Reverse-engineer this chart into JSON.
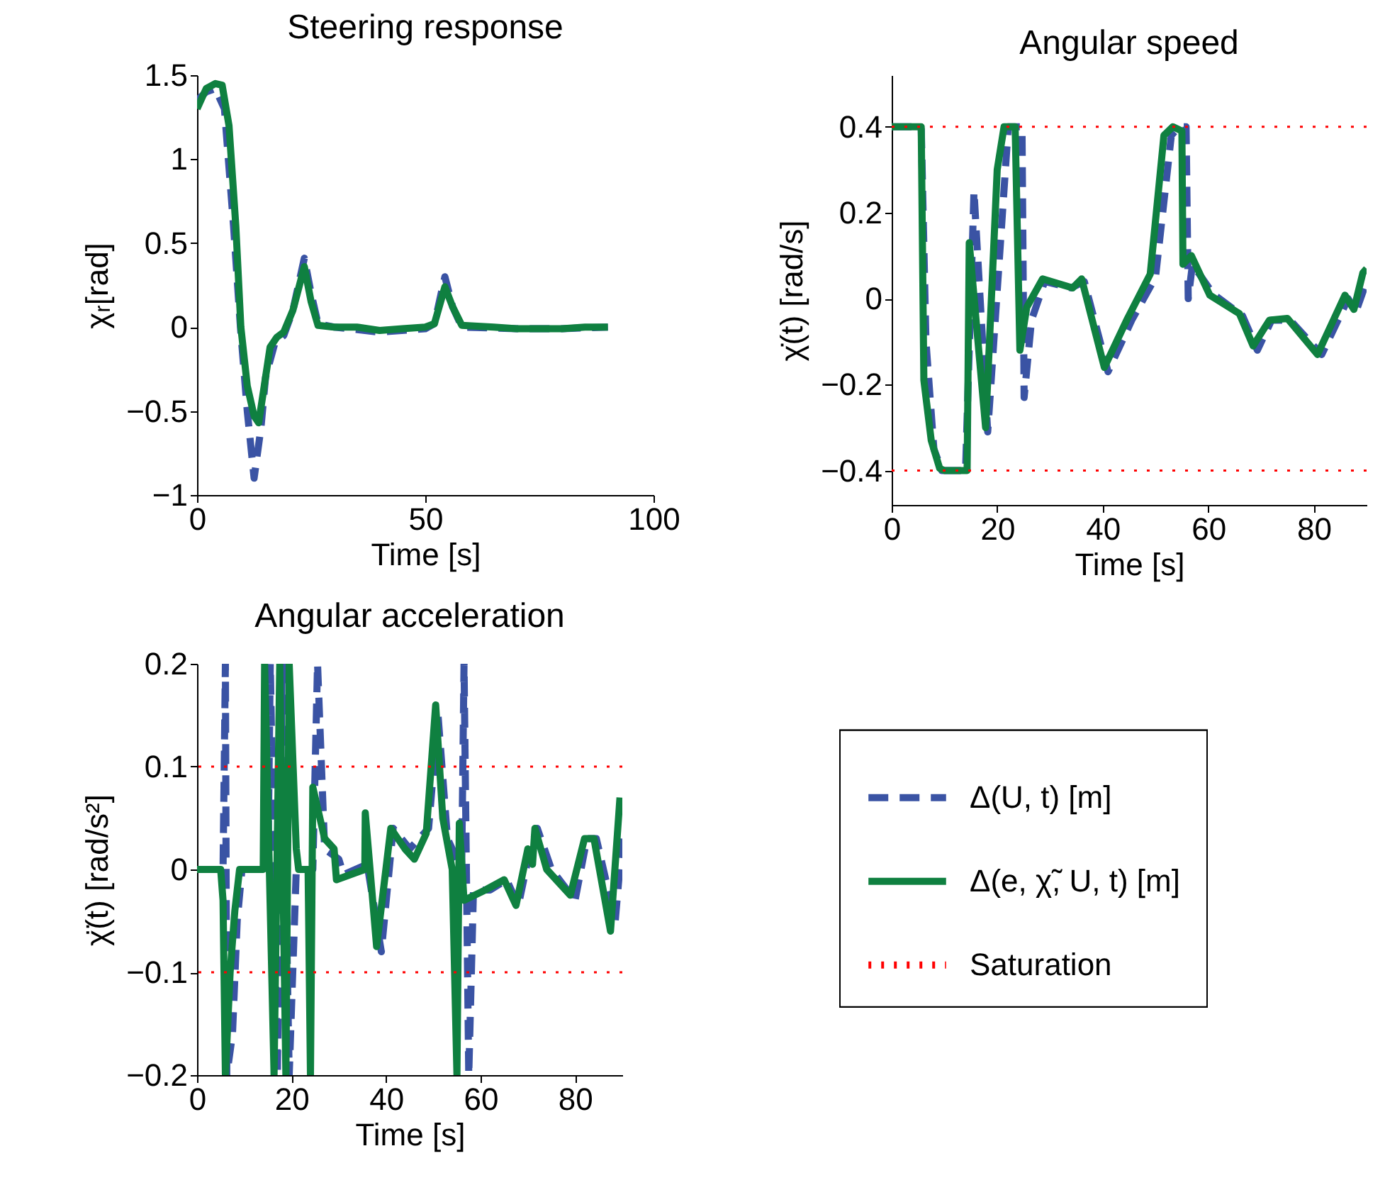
{
  "chart_data": [
    {
      "type": "line",
      "title": "Steering response",
      "xlabel": "Time [s]",
      "ylabel": "χᵣ[rad]",
      "xlim": [
        0,
        100
      ],
      "xticks": [
        0,
        50,
        100
      ],
      "ylim": [
        -1,
        1.5
      ],
      "yticks": [
        -1,
        -0.5,
        0,
        0.5,
        1,
        1.5
      ],
      "series": [
        {
          "color": "#3a53a4",
          "line_style": "dashed",
          "x": [
            0,
            2,
            4,
            6,
            8,
            9.5,
            11,
            12.5,
            14,
            15,
            17,
            19,
            21,
            23.5,
            25,
            26.5,
            30,
            40,
            50,
            52,
            54.3,
            56,
            58,
            70,
            80,
            90
          ],
          "values": [
            1.35,
            1.4,
            1.42,
            1.3,
            0.6,
            0,
            -0.5,
            -0.9,
            -0.6,
            -0.3,
            -0.1,
            -0.05,
            0.1,
            0.41,
            0.2,
            0.02,
            0,
            -0.03,
            -0.01,
            0.02,
            0.3,
            0.12,
            0,
            -0.01,
            -0.01,
            0
          ]
        },
        {
          "color": "#0f8040",
          "line_style": "solid",
          "x": [
            0,
            2,
            4,
            5.5,
            7,
            8.5,
            9.6,
            11,
            12.5,
            13.5,
            15,
            16,
            17.5,
            19,
            21,
            23.5,
            25,
            26.5,
            30,
            35,
            40,
            45,
            50,
            52,
            54.3,
            56,
            58,
            65,
            70,
            75,
            80,
            85,
            90
          ],
          "values": [
            1.3,
            1.42,
            1.45,
            1.44,
            1.2,
            0.6,
            0,
            -0.35,
            -0.53,
            -0.57,
            -0.3,
            -0.12,
            -0.06,
            -0.03,
            0.1,
            0.36,
            0.15,
            0.01,
            0,
            0,
            -0.02,
            -0.01,
            0,
            0.02,
            0.24,
            0.12,
            0.01,
            0,
            -0.01,
            -0.01,
            -0.01,
            0,
            0
          ]
        }
      ]
    },
    {
      "type": "line",
      "title": "Angular speed",
      "xlabel": "Time [s]",
      "ylabel": "χ̇(t) [rad/s]",
      "xlim": [
        0,
        90
      ],
      "xticks": [
        0,
        20,
        40,
        60,
        80
      ],
      "ylim": [
        -0.48,
        0.52
      ],
      "yticks": [
        -0.4,
        -0.2,
        0,
        0.2,
        0.4
      ],
      "ref_lines": [
        {
          "axis": "y",
          "value": 0.4,
          "color": "#ff0000",
          "line_style": "dotted"
        },
        {
          "axis": "y",
          "value": -0.4,
          "color": "#ff0000",
          "line_style": "dotted"
        }
      ],
      "series": [
        {
          "color": "#3a53a4",
          "line_style": "dashed",
          "x": [
            0,
            5.6,
            6.5,
            8,
            9.5,
            14,
            15.6,
            18.2,
            22.1,
            24.7,
            25.1,
            26.5,
            29,
            34,
            36.5,
            41,
            45.5,
            50,
            53,
            54.5,
            55.8,
            56.2,
            57,
            61,
            66.5,
            69.3,
            72,
            75.5,
            81.5,
            86.5,
            88,
            90
          ],
          "values": [
            0.4,
            0.4,
            -0.1,
            -0.35,
            -0.4,
            -0.4,
            0.25,
            -0.31,
            0.4,
            0.4,
            -0.23,
            -0.05,
            0.04,
            0.025,
            0.04,
            -0.17,
            -0.05,
            0.05,
            0.38,
            0.4,
            0.4,
            0,
            0.08,
            0.01,
            -0.04,
            -0.12,
            -0.05,
            -0.05,
            -0.13,
            0,
            -0.03,
            0.04
          ]
        },
        {
          "color": "#0f8040",
          "line_style": "solid",
          "x": [
            0,
            5.6,
            6.1,
            7.5,
            9.1,
            10,
            14.3,
            14.7,
            17.8,
            20,
            21.3,
            23.4,
            24.3,
            25.6,
            28.6,
            34.3,
            36,
            40.3,
            44.7,
            49,
            51.6,
            53.3,
            55,
            55.2,
            56.8,
            60.3,
            65.9,
            68.5,
            71.6,
            75,
            80.7,
            85.9,
            87.6,
            89.3,
            90
          ],
          "values": [
            0.4,
            0.4,
            -0.19,
            -0.33,
            -0.395,
            -0.4,
            -0.4,
            0.13,
            -0.3,
            0.3,
            0.4,
            0.4,
            -0.12,
            -0.02,
            0.046,
            0.025,
            0.046,
            -0.16,
            -0.046,
            0.057,
            0.38,
            0.4,
            0.39,
            0.08,
            0.1,
            0.008,
            -0.035,
            -0.11,
            -0.05,
            -0.046,
            -0.13,
            0.008,
            -0.025,
            0.06,
            0.07
          ]
        }
      ]
    },
    {
      "type": "line",
      "title": "Angular acceleration",
      "xlabel": "Time [s]",
      "ylabel": "χ̈(t) [rad/s²]",
      "xlim": [
        0,
        90
      ],
      "xticks": [
        0,
        20,
        40,
        60,
        80
      ],
      "ylim": [
        -0.2,
        0.2
      ],
      "yticks": [
        -0.2,
        -0.1,
        0,
        0.1,
        0.2
      ],
      "legend": "right",
      "ref_lines": [
        {
          "axis": "y",
          "value": 0.1,
          "label": "Saturation",
          "color": "#ff0000",
          "line_style": "dotted"
        },
        {
          "axis": "y",
          "value": -0.1,
          "color": "#ff0000",
          "line_style": "dotted"
        }
      ],
      "series": [
        {
          "name": "Δ(U, t) [m]",
          "color": "#3a53a4",
          "line_style": "dashed",
          "x": [
            0,
            5.5,
            6,
            6.3,
            7.5,
            8.5,
            9.5,
            15,
            15.5,
            17,
            18,
            19.5,
            21,
            24.5,
            25.5,
            27,
            30,
            31,
            36,
            39,
            41.5,
            45,
            49,
            51,
            53,
            56,
            56.5,
            57.5,
            58.5,
            62,
            65.5,
            68,
            70.5,
            72,
            75,
            80,
            82.5,
            84.5,
            88.5,
            90
          ],
          "values": [
            0,
            0,
            0.2,
            -0.2,
            -0.16,
            -0.05,
            0,
            0,
            0.2,
            -0.2,
            0.2,
            -0.2,
            0,
            0,
            0.2,
            0.02,
            0.01,
            -0.005,
            0.005,
            -0.08,
            0.04,
            0.02,
            0.04,
            0.15,
            0.03,
            0,
            0.2,
            -0.2,
            -0.02,
            -0.02,
            -0.01,
            -0.035,
            0.02,
            0.04,
            0,
            -0.03,
            0.03,
            0.03,
            -0.05,
            0.03
          ]
        },
        {
          "name": "Δ(e, χ̃, U, t) [m]",
          "color": "#0f8040",
          "line_style": "solid",
          "x": [
            0,
            5,
            5.5,
            6,
            7,
            8,
            9,
            14,
            14.3,
            16.3,
            17.5,
            18.8,
            19.5,
            21,
            21.5,
            23.5,
            24,
            24.5,
            27,
            29,
            29.5,
            35.5,
            35.6,
            38,
            41,
            44,
            46,
            48.5,
            50.5,
            52,
            54,
            55,
            55.5,
            56.5,
            61,
            65,
            67.5,
            70,
            71,
            71.5,
            74,
            79,
            82,
            84,
            87.5,
            89.5
          ],
          "values": [
            0,
            0,
            -0.03,
            -0.2,
            -0.1,
            -0.04,
            0,
            0,
            0.2,
            -0.2,
            0.2,
            -0.2,
            0.2,
            0.02,
            0,
            0,
            -0.2,
            0.08,
            0.03,
            0.02,
            -0.01,
            0,
            0.055,
            -0.075,
            0.04,
            0.02,
            0.01,
            0.035,
            0.16,
            0.05,
            0,
            -0.2,
            0.045,
            -0.03,
            -0.02,
            -0.01,
            -0.035,
            0.02,
            0.005,
            0.04,
            0,
            -0.025,
            0.03,
            0.03,
            -0.06,
            0.07
          ]
        }
      ]
    }
  ]
}
